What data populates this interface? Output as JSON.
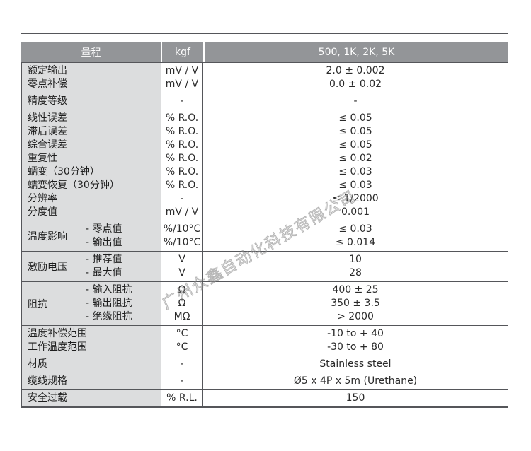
{
  "watermark": "广州众鑫自动化科技有限公司",
  "colors": {
    "header_bg": "#939598",
    "label_bg": "#dcddde",
    "border": "#55565a",
    "text": "#1e1e1e"
  },
  "table": {
    "header": {
      "col_label": "量程",
      "col_unit": "kgf",
      "col_value": "500, 1K, 2K, 5K"
    },
    "groups": [
      {
        "rows": [
          {
            "label": "额定输出",
            "unit": "mV / V",
            "value": "2.0 ± 0.002"
          },
          {
            "label": "零点补偿",
            "unit": "mV / V",
            "value": "0.0 ± 0.02"
          }
        ]
      },
      {
        "rows": [
          {
            "label": "精度等级",
            "unit": "-",
            "value": "-"
          }
        ]
      },
      {
        "rows": [
          {
            "label": "线性误差",
            "unit": "% R.O.",
            "value": "≤ 0.05"
          },
          {
            "label": "滞后误差",
            "unit": "% R.O.",
            "value": "≤ 0.05"
          },
          {
            "label": "综合误差",
            "unit": "% R.O.",
            "value": "≤ 0.05"
          },
          {
            "label": "重复性",
            "unit": "% R.O.",
            "value": "≤ 0.02"
          },
          {
            "label": "蠕变（30分钟）",
            "unit": "% R.O.",
            "value": "≤ 0.03"
          },
          {
            "label": "蠕变恢复（30分钟）",
            "unit": "% R.O.",
            "value": "≤ 0.03"
          },
          {
            "label": "分辨率",
            "unit": "-",
            "value": "≤ 1/2000"
          },
          {
            "label": "分度值",
            "unit": "mV / V",
            "value": "0.001"
          }
        ]
      },
      {
        "group_label": "温度影响",
        "rows": [
          {
            "sublabel": "- 零点值",
            "unit": "%/10°C",
            "value": "≤ 0.03"
          },
          {
            "sublabel": "- 输出值",
            "unit": "%/10°C",
            "value": "≤ 0.014"
          }
        ]
      },
      {
        "group_label": "激励电压",
        "rows": [
          {
            "sublabel": "- 推荐值",
            "unit": "V",
            "value": "10"
          },
          {
            "sublabel": "- 最大值",
            "unit": "V",
            "value": "28"
          }
        ]
      },
      {
        "group_label": "阻抗",
        "rows": [
          {
            "sublabel": "- 输入阻抗",
            "unit": "Ω",
            "value": "400 ± 25"
          },
          {
            "sublabel": "- 输出阻抗",
            "unit": "Ω",
            "value": "350 ± 3.5"
          },
          {
            "sublabel": "- 绝缘阻抗",
            "unit": "MΩ",
            "value": "> 2000"
          }
        ]
      },
      {
        "rows": [
          {
            "label": "温度补偿范围",
            "unit": "°C",
            "value": "-10 to + 40"
          },
          {
            "label": "工作温度范围",
            "unit": "°C",
            "value": "-30 to + 80"
          }
        ]
      },
      {
        "rows": [
          {
            "label": "材质",
            "unit": "-",
            "value": "Stainless steel"
          }
        ]
      },
      {
        "rows": [
          {
            "label": "缆线规格",
            "unit": "-",
            "value": "Ø5 x 4P x 5m (Urethane)"
          }
        ]
      },
      {
        "rows": [
          {
            "label": "安全过载",
            "unit": "% R.L.",
            "value": "150"
          }
        ]
      }
    ]
  }
}
